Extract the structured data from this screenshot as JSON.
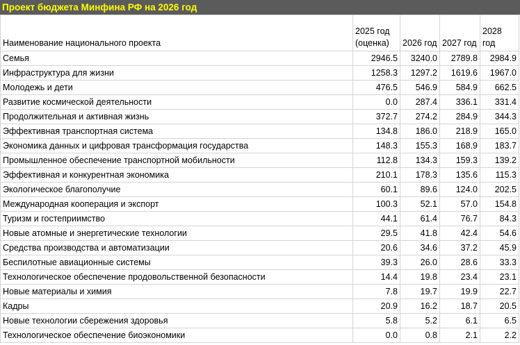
{
  "header": {
    "title": "Проект бюджета Минфина РФ на 2026 год"
  },
  "table": {
    "columns": [
      "Наименование национального проекта",
      "2025 год (оценка)",
      "2026 год",
      "2027 год",
      "2028 год"
    ],
    "rows": [
      [
        "Семья",
        "2946.5",
        "3240.0",
        "2789.8",
        "2984.9"
      ],
      [
        "Инфраструктура для жизни",
        "1258.3",
        "1297.2",
        "1619.6",
        "1967.0"
      ],
      [
        "Молодежь и дети",
        "476.5",
        "546.9",
        "584.9",
        "662.5"
      ],
      [
        "Развитие космической деятельности",
        "0.0",
        "287.4",
        "336.1",
        "331.4"
      ],
      [
        "Продолжительная и активная жизнь",
        "372.7",
        "274.2",
        "284.9",
        "344.3"
      ],
      [
        "Эффективная транспортная система",
        "134.8",
        "186.0",
        "218.9",
        "165.0"
      ],
      [
        "Экономика данных и цифровая трансформация государства",
        "148.3",
        "155.3",
        "168.9",
        "183.7"
      ],
      [
        "Промышленное обеспечение транспортной мобильности",
        "112.8",
        "134.3",
        "159.3",
        "139.2"
      ],
      [
        "Эффективная и конкурентная экономика",
        "210.1",
        "178.3",
        "135.6",
        "115.3"
      ],
      [
        "Экологическое благополучие",
        "60.1",
        "89.6",
        "124.0",
        "202.5"
      ],
      [
        "Международная кооперация и экспорт",
        "100.3",
        "52.1",
        "57.0",
        "154.8"
      ],
      [
        "Туризм и гостеприимство",
        "44.1",
        "61.4",
        "76.7",
        "84.3"
      ],
      [
        "Новые атомные и энергетические технологии",
        "29.5",
        "41.8",
        "42.4",
        "54.6"
      ],
      [
        "Средства производства и автоматизации",
        "20.6",
        "34.6",
        "37.2",
        "45.9"
      ],
      [
        "Беспилотные авиационные системы",
        "39.3",
        "26.0",
        "28.6",
        "33.3"
      ],
      [
        "Технологическое обеспечение продовольственной безопасности",
        "14.4",
        "19.8",
        "23.4",
        "23.1"
      ],
      [
        "Новые материалы и химия",
        "7.8",
        "19.7",
        "19.9",
        "22.7"
      ],
      [
        "Кадры",
        "20.9",
        "16.2",
        "18.7",
        "20.5"
      ],
      [
        "Новые технологии сбережения здоровья",
        "5.8",
        "5.2",
        "6.1",
        "6.5"
      ],
      [
        "Технологическое обеспечение биоэкономики",
        "0.0",
        "0.8",
        "2.1",
        "2.2"
      ]
    ]
  }
}
